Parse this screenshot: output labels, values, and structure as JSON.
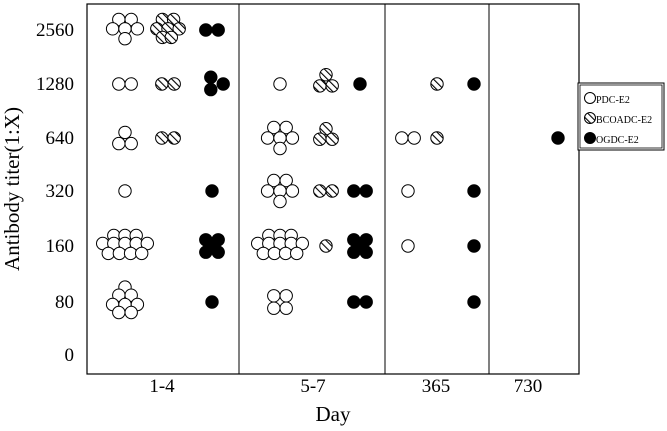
{
  "chart_data": {
    "type": "scatter",
    "xlabel": "Day",
    "ylabel": "Antibody titer(1:X)",
    "categories": [
      "1-4",
      "5-7",
      "365",
      "730"
    ],
    "y_ticks": [
      "0",
      "80",
      "160",
      "320",
      "640",
      "1280",
      "2560"
    ],
    "legend_placement": "right",
    "grid": false,
    "series": [
      {
        "name": "PDC-E2",
        "marker": "open-circle",
        "color": "#000000",
        "points": [
          {
            "day": "1-4",
            "titer": "2560",
            "count": 6
          },
          {
            "day": "1-4",
            "titer": "1280",
            "count": 2
          },
          {
            "day": "1-4",
            "titer": "640",
            "count": 3
          },
          {
            "day": "1-4",
            "titer": "320",
            "count": 1
          },
          {
            "day": "1-4",
            "titer": "160",
            "count": 12
          },
          {
            "day": "1-4",
            "titer": "80",
            "count": 8
          },
          {
            "day": "5-7",
            "titer": "1280",
            "count": 1
          },
          {
            "day": "5-7",
            "titer": "640",
            "count": 6
          },
          {
            "day": "5-7",
            "titer": "320",
            "count": 6
          },
          {
            "day": "5-7",
            "titer": "160",
            "count": 12
          },
          {
            "day": "5-7",
            "titer": "80",
            "count": 4
          },
          {
            "day": "365",
            "titer": "640",
            "count": 2
          },
          {
            "day": "365",
            "titer": "320",
            "count": 1
          },
          {
            "day": "365",
            "titer": "160",
            "count": 1
          }
        ]
      },
      {
        "name": "BCOADC-E2",
        "marker": "hatched-circle",
        "color": "#000000",
        "points": [
          {
            "day": "1-4",
            "titer": "2560",
            "count": 7
          },
          {
            "day": "1-4",
            "titer": "1280",
            "count": 2
          },
          {
            "day": "1-4",
            "titer": "640",
            "count": 2
          },
          {
            "day": "5-7",
            "titer": "1280",
            "count": 3
          },
          {
            "day": "5-7",
            "titer": "640",
            "count": 3
          },
          {
            "day": "5-7",
            "titer": "320",
            "count": 2
          },
          {
            "day": "5-7",
            "titer": "160",
            "count": 1
          },
          {
            "day": "365",
            "titer": "1280",
            "count": 1
          },
          {
            "day": "365",
            "titer": "640",
            "count": 1
          }
        ]
      },
      {
        "name": "OGDC-E2",
        "marker": "filled-circle",
        "color": "#000000",
        "points": [
          {
            "day": "1-4",
            "titer": "2560",
            "count": 2
          },
          {
            "day": "1-4",
            "titer": "1280",
            "count": 3
          },
          {
            "day": "1-4",
            "titer": "320",
            "count": 1
          },
          {
            "day": "1-4",
            "titer": "160",
            "count": 5
          },
          {
            "day": "1-4",
            "titer": "80",
            "count": 1
          },
          {
            "day": "5-7",
            "titer": "1280",
            "count": 1
          },
          {
            "day": "5-7",
            "titer": "320",
            "count": 2
          },
          {
            "day": "5-7",
            "titer": "160",
            "count": 5
          },
          {
            "day": "5-7",
            "titer": "80",
            "count": 2
          },
          {
            "day": "365",
            "titer": "1280",
            "count": 1
          },
          {
            "day": "365",
            "titer": "320",
            "count": 1
          },
          {
            "day": "365",
            "titer": "160",
            "count": 1
          },
          {
            "day": "365",
            "titer": "80",
            "count": 1
          },
          {
            "day": "730",
            "titer": "640",
            "count": 1
          }
        ]
      }
    ]
  }
}
